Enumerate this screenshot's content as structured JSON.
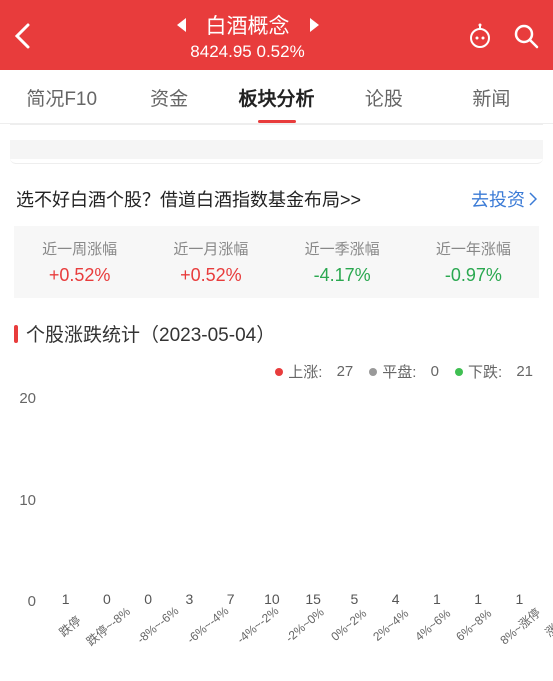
{
  "header": {
    "title": "白酒概念",
    "price": "8424.95",
    "change": "0.52%"
  },
  "tabs": [
    {
      "label": "简况F10",
      "active": false
    },
    {
      "label": "资金",
      "active": false
    },
    {
      "label": "板块分析",
      "active": true
    },
    {
      "label": "论股",
      "active": false
    },
    {
      "label": "新闻",
      "active": false
    }
  ],
  "promo": {
    "text": "选不好白酒个股？借道白酒指数基金布局>>",
    "link": "去投资"
  },
  "perf": [
    {
      "label": "近一周涨幅",
      "value": "+0.52%",
      "dir": "up"
    },
    {
      "label": "近一月涨幅",
      "value": "+0.52%",
      "dir": "up"
    },
    {
      "label": "近一季涨幅",
      "value": "-4.17%",
      "dir": "down"
    },
    {
      "label": "近一年涨幅",
      "value": "-0.97%",
      "dir": "down"
    }
  ],
  "section": {
    "title_prefix": "个股涨跌统计",
    "date": "（2023-05-04）"
  },
  "legend": {
    "up_label": "上涨:",
    "up_count": "27",
    "flat_label": "平盘:",
    "flat_count": "0",
    "down_label": "下跌:",
    "down_count": "21"
  },
  "chart": {
    "type": "bar",
    "ylim": [
      0,
      20
    ],
    "yticks": [
      "20",
      "10",
      "0"
    ],
    "colors": {
      "up": "#e86a5f",
      "down": "#4fc25a"
    },
    "bars": [
      {
        "label": "跌停",
        "value": 1,
        "dir": "down"
      },
      {
        "label": "跌停~-8%",
        "value": 0,
        "dir": "down"
      },
      {
        "label": "-8%~-6%",
        "value": 0,
        "dir": "down"
      },
      {
        "label": "-6%~-4%",
        "value": 3,
        "dir": "down"
      },
      {
        "label": "-4%~-2%",
        "value": 7,
        "dir": "down"
      },
      {
        "label": "-2%~0%",
        "value": 10,
        "dir": "down"
      },
      {
        "label": "0%~2%",
        "value": 15,
        "dir": "up"
      },
      {
        "label": "2%~4%",
        "value": 5,
        "dir": "up"
      },
      {
        "label": "4%~6%",
        "value": 4,
        "dir": "up"
      },
      {
        "label": "6%~8%",
        "value": 1,
        "dir": "up"
      },
      {
        "label": "8%~涨停",
        "value": 1,
        "dir": "up"
      },
      {
        "label": "涨停",
        "value": 1,
        "dir": "up"
      }
    ]
  }
}
